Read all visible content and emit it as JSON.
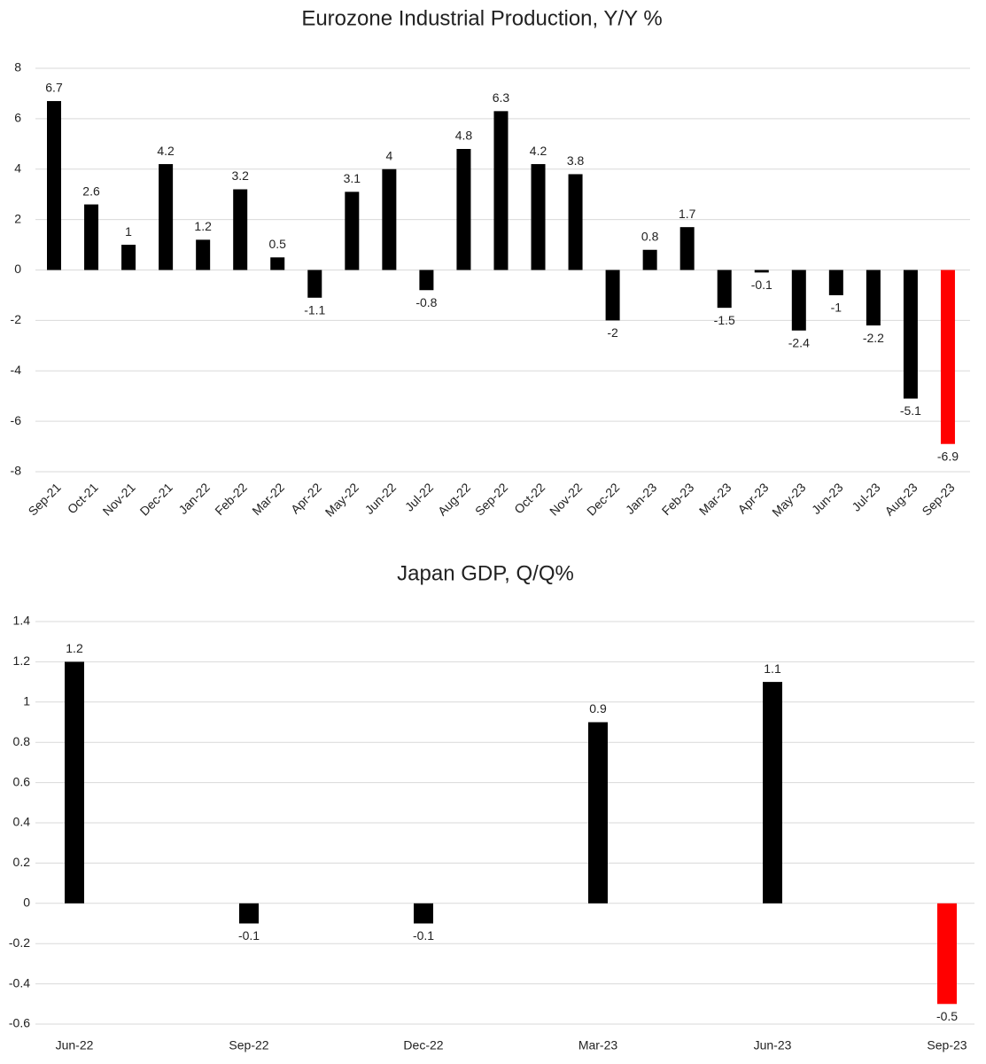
{
  "chart_data": [
    {
      "type": "bar",
      "title": "Eurozone Industrial Production, Y/Y %",
      "categories": [
        "Sep-21",
        "Oct-21",
        "Nov-21",
        "Dec-21",
        "Jan-22",
        "Feb-22",
        "Mar-22",
        "Apr-22",
        "May-22",
        "Jun-22",
        "Jul-22",
        "Aug-22",
        "Sep-22",
        "Oct-22",
        "Nov-22",
        "Dec-22",
        "Jan-23",
        "Feb-23",
        "Mar-23",
        "Apr-23",
        "May-23",
        "Jun-23",
        "Jul-23",
        "Aug-23",
        "Sep-23"
      ],
      "values": [
        6.7,
        2.6,
        1,
        4.2,
        1.2,
        3.2,
        0.5,
        -1.1,
        3.1,
        4,
        -0.8,
        4.8,
        6.3,
        4.2,
        3.8,
        -2,
        0.8,
        1.7,
        -1.5,
        -0.1,
        -2.4,
        -1,
        -2.2,
        -5.1,
        -6.9
      ],
      "colors": [
        "#000000",
        "#000000",
        "#000000",
        "#000000",
        "#000000",
        "#000000",
        "#000000",
        "#000000",
        "#000000",
        "#000000",
        "#000000",
        "#000000",
        "#000000",
        "#000000",
        "#000000",
        "#000000",
        "#000000",
        "#000000",
        "#000000",
        "#000000",
        "#000000",
        "#000000",
        "#000000",
        "#000000",
        "#ff0000"
      ],
      "ylim": [
        -8,
        8
      ],
      "yticks": [
        -8,
        -6,
        -4,
        -2,
        0,
        2,
        4,
        6,
        8
      ],
      "grid": true
    },
    {
      "type": "bar",
      "title": "Japan GDP, Q/Q%",
      "categories": [
        "Jun-22",
        "Sep-22",
        "Dec-22",
        "Mar-23",
        "Jun-23",
        "Sep-23"
      ],
      "values": [
        1.2,
        -0.1,
        -0.1,
        0.9,
        1.1,
        -0.5
      ],
      "colors": [
        "#000000",
        "#000000",
        "#000000",
        "#000000",
        "#000000",
        "#ff0000"
      ],
      "ylim": [
        -0.6,
        1.4
      ],
      "yticks": [
        -0.6,
        -0.4,
        -0.2,
        0,
        0.2,
        0.4,
        0.6,
        0.8,
        1,
        1.2,
        1.4
      ],
      "grid": true
    }
  ]
}
